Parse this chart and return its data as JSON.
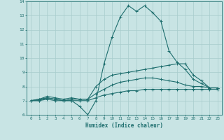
{
  "xlabel": "Humidex (Indice chaleur)",
  "ylabel": "",
  "xlim": [
    -0.5,
    23.5
  ],
  "ylim": [
    6,
    14
  ],
  "xticks": [
    0,
    1,
    2,
    3,
    4,
    5,
    6,
    7,
    8,
    9,
    10,
    11,
    12,
    13,
    14,
    15,
    16,
    17,
    18,
    19,
    20,
    21,
    22,
    23
  ],
  "yticks": [
    6,
    7,
    8,
    9,
    10,
    11,
    12,
    13,
    14
  ],
  "background_color": "#c8e4e4",
  "line_color": "#1e6e6e",
  "grid_color": "#a8cccc",
  "lines": [
    {
      "x": [
        0,
        1,
        2,
        3,
        4,
        5,
        6,
        7,
        8,
        9,
        10,
        11,
        12,
        13,
        14,
        15,
        16,
        17,
        18,
        19,
        20,
        21,
        22,
        23
      ],
      "y": [
        7.0,
        7.0,
        7.2,
        7.1,
        7.0,
        7.0,
        6.6,
        6.0,
        7.0,
        9.6,
        11.5,
        12.9,
        13.7,
        13.3,
        13.7,
        13.2,
        12.6,
        10.5,
        9.7,
        9.2,
        8.5,
        8.2,
        7.9,
        7.9
      ]
    },
    {
      "x": [
        0,
        1,
        2,
        3,
        4,
        5,
        6,
        7,
        8,
        9,
        10,
        11,
        12,
        13,
        14,
        15,
        16,
        17,
        18,
        19,
        20,
        21,
        22,
        23
      ],
      "y": [
        7.0,
        7.1,
        7.3,
        7.2,
        7.1,
        7.2,
        7.1,
        7.1,
        8.0,
        8.5,
        8.8,
        8.9,
        9.0,
        9.1,
        9.2,
        9.3,
        9.4,
        9.5,
        9.6,
        9.6,
        8.8,
        8.4,
        7.9,
        7.9
      ]
    },
    {
      "x": [
        0,
        1,
        2,
        3,
        4,
        5,
        6,
        7,
        8,
        9,
        10,
        11,
        12,
        13,
        14,
        15,
        16,
        17,
        18,
        19,
        20,
        21,
        22,
        23
      ],
      "y": [
        7.0,
        7.1,
        7.2,
        7.1,
        7.0,
        7.1,
        7.1,
        7.1,
        7.5,
        7.8,
        8.1,
        8.3,
        8.4,
        8.5,
        8.6,
        8.6,
        8.5,
        8.4,
        8.3,
        8.1,
        8.0,
        8.0,
        7.9,
        7.9
      ]
    },
    {
      "x": [
        0,
        1,
        2,
        3,
        4,
        5,
        6,
        7,
        8,
        9,
        10,
        11,
        12,
        13,
        14,
        15,
        16,
        17,
        18,
        19,
        20,
        21,
        22,
        23
      ],
      "y": [
        7.0,
        7.0,
        7.1,
        7.0,
        7.0,
        7.0,
        7.0,
        7.0,
        7.2,
        7.4,
        7.5,
        7.6,
        7.7,
        7.7,
        7.8,
        7.8,
        7.8,
        7.8,
        7.8,
        7.8,
        7.8,
        7.8,
        7.8,
        7.8
      ]
    }
  ]
}
